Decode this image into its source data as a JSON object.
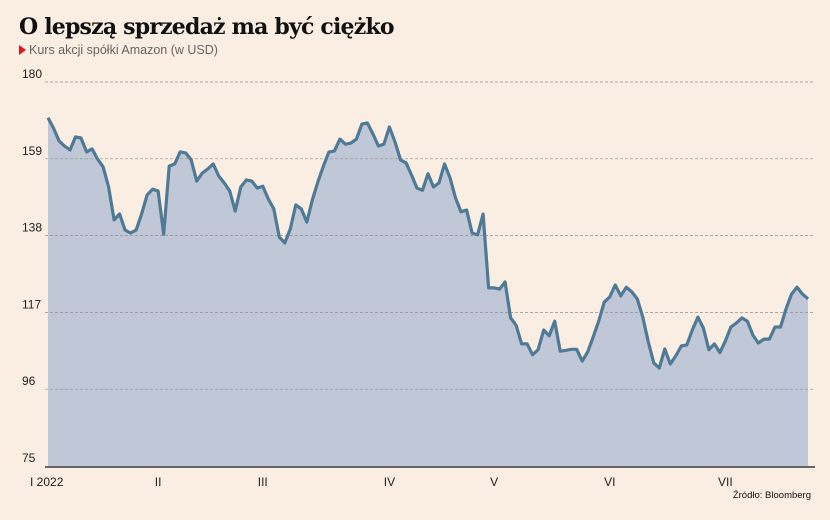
{
  "chart_data": {
    "type": "area",
    "title": "O lepszą sprzedaż ma być ciężko",
    "subtitle": "Kurs akcji spółki Amazon (w USD)",
    "source": "Źródło: Bloomberg",
    "xlabel": "",
    "ylabel": "",
    "ylim": [
      75,
      180
    ],
    "yticks": [
      180,
      159,
      138,
      117,
      96,
      75
    ],
    "grid": true,
    "month_ticks": [
      {
        "label": "I 2022",
        "index": 0
      },
      {
        "label": "II",
        "index": 20
      },
      {
        "label": "III",
        "index": 39
      },
      {
        "label": "IV",
        "index": 62
      },
      {
        "label": "V",
        "index": 81
      },
      {
        "label": "VI",
        "index": 102
      },
      {
        "label": "VII",
        "index": 123
      }
    ],
    "values": [
      170.2,
      167.4,
      163.9,
      162.5,
      161.4,
      165,
      164.7,
      160.9,
      161.7,
      158.9,
      156.8,
      151.3,
      142.3,
      143.9,
      139.5,
      138.7,
      139.5,
      143.9,
      149.1,
      150.7,
      150.2,
      138.4,
      157,
      157.6,
      160.9,
      160.6,
      158.7,
      152.9,
      155.1,
      156.2,
      157.6,
      154.3,
      152.4,
      150.2,
      144.7,
      151.3,
      153.2,
      152.9,
      151,
      151.5,
      148,
      145.3,
      137.6,
      136,
      139.8,
      146.4,
      145.3,
      141.7,
      147.7,
      152.7,
      157,
      160.9,
      161.1,
      164.4,
      163,
      163.3,
      164.4,
      168.5,
      168.8,
      165.8,
      162.5,
      163,
      167.7,
      163.6,
      158.7,
      157.9,
      154.6,
      151,
      150.4,
      154.9,
      151.3,
      152.4,
      157.6,
      153.8,
      148.3,
      144.5,
      145,
      138.7,
      138.2,
      143.9,
      123.7,
      123.7,
      123.4,
      125.3,
      115.5,
      113.5,
      108.4,
      108.4,
      105.4,
      106.8,
      112.2,
      110.6,
      114.6,
      106.4,
      106.6,
      106.9,
      106.9,
      103.7,
      106.2,
      110.3,
      114.6,
      119.8,
      121.2,
      124.5,
      121.5,
      123.9,
      122.6,
      120.7,
      115.7,
      108.9,
      103.2,
      101.8,
      107,
      102.9,
      105.1,
      107.8,
      108.1,
      112.2,
      115.7,
      112.7,
      106.8,
      108.4,
      106,
      109.2,
      113,
      114.1,
      115.5,
      114.6,
      110.8,
      108.6,
      109.7,
      109.7,
      113,
      113,
      117.9,
      122,
      123.9,
      122,
      120.7
    ],
    "colors": {
      "line": "#4f7a96",
      "fill": "#c0c8d7",
      "background": "#faede1",
      "marker": "#e3141b"
    }
  }
}
